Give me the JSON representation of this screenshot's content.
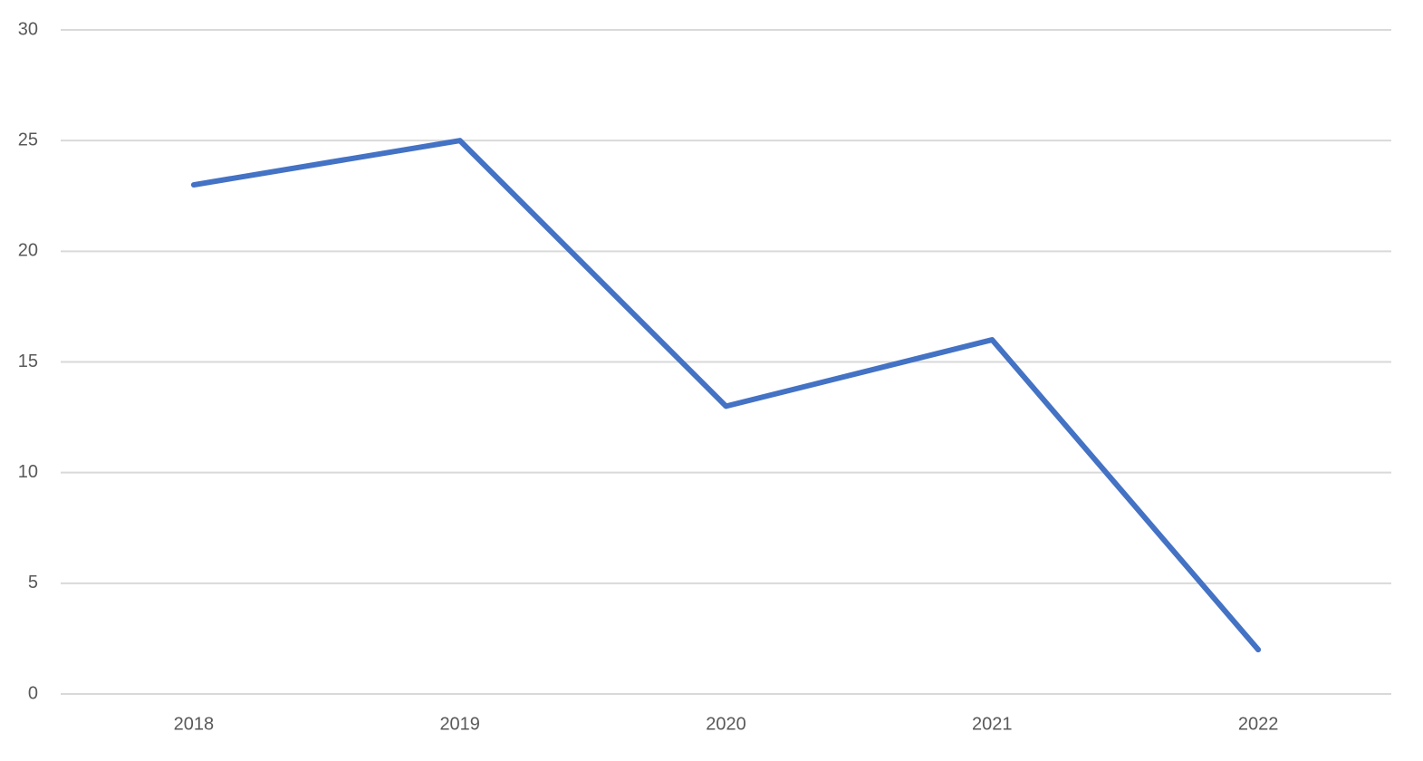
{
  "chart_data": {
    "type": "line",
    "categories": [
      "2018",
      "2019",
      "2020",
      "2021",
      "2022"
    ],
    "values": [
      23,
      25,
      13,
      16,
      2
    ],
    "color": "#4472c4",
    "ylim": [
      0,
      30
    ],
    "yticks": [
      0,
      5,
      10,
      15,
      20,
      25,
      30
    ],
    "grid": true
  }
}
